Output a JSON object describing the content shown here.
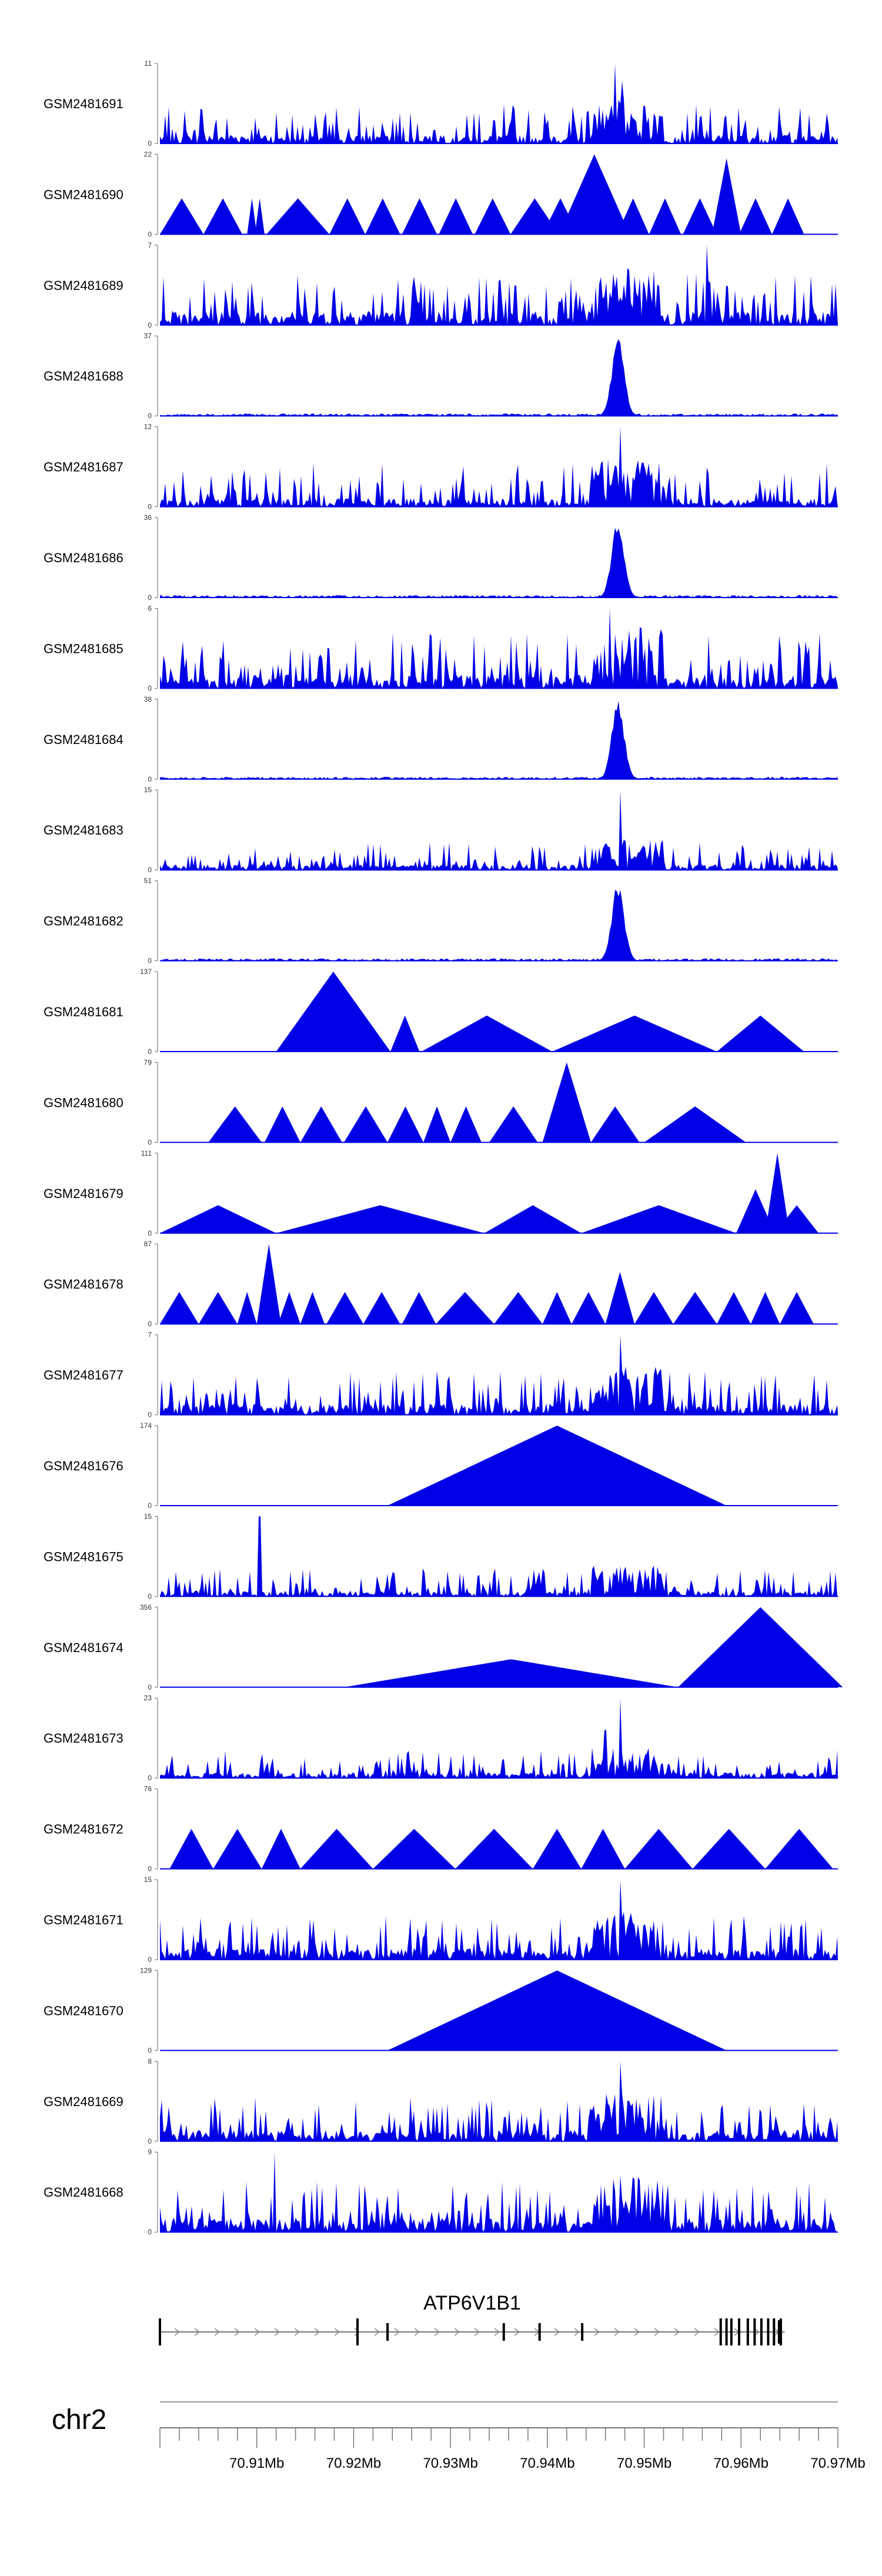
{
  "chart_data": {
    "type": "area",
    "chromosome": "chr2",
    "gene": {
      "name": "ATP6V1B1",
      "start_mb": 70.9,
      "end_mb": 70.9645,
      "strand": "+",
      "exons_mb": [
        70.9,
        70.9204,
        70.9235,
        70.9355,
        70.9392,
        70.9436,
        70.9579,
        70.9585,
        70.959,
        70.9598,
        70.9607,
        70.9614,
        70.9621,
        70.9628,
        70.9634,
        70.9641
      ]
    },
    "xlim": [
      70.9,
      70.97
    ],
    "major_ticks": [
      70.91,
      70.92,
      70.93,
      70.94,
      70.95,
      70.96,
      70.97
    ],
    "tick_labels": [
      "70.91Mb",
      "70.92Mb",
      "70.93Mb",
      "70.94Mb",
      "70.95Mb",
      "70.96Mb",
      "70.97Mb"
    ],
    "tracks": [
      {
        "name": "GSM2481691",
        "ymin": 0,
        "ymax": 11,
        "kind": "noise",
        "base": 0.15,
        "peak": 0.5,
        "spikes": [
          [
            70.947,
            1.0
          ],
          [
            70.9477,
            0.78
          ]
        ]
      },
      {
        "name": "GSM2481690",
        "ymin": 0,
        "ymax": 22,
        "kind": "tri",
        "tris": [
          [
            70.9,
            70.9045,
            0.45
          ],
          [
            70.9045,
            70.9085,
            0.45
          ],
          [
            70.909,
            70.91,
            0.45
          ],
          [
            70.9098,
            70.9108,
            0.45
          ],
          [
            70.911,
            70.9175,
            0.45
          ],
          [
            70.9175,
            70.9212,
            0.45
          ],
          [
            70.9212,
            70.9248,
            0.45
          ],
          [
            70.925,
            70.9286,
            0.45
          ],
          [
            70.9288,
            70.9323,
            0.45
          ],
          [
            70.9325,
            70.9362,
            0.45
          ],
          [
            70.9362,
            70.9412,
            0.45
          ],
          [
            70.9395,
            70.9432,
            0.45
          ],
          [
            70.9412,
            70.9485,
            1.0
          ],
          [
            70.9435,
            70.9472,
            0.45
          ],
          [
            70.9472,
            70.9505,
            0.45
          ],
          [
            70.9505,
            70.9538,
            0.45
          ],
          [
            70.954,
            70.9575,
            0.45
          ],
          [
            70.957,
            70.96,
            0.95
          ],
          [
            70.9598,
            70.9632,
            0.45
          ],
          [
            70.9632,
            70.9665,
            0.45
          ]
        ]
      },
      {
        "name": "GSM2481689",
        "ymin": 0,
        "ymax": 7,
        "kind": "noise",
        "base": 0.25,
        "peak": 0.65,
        "spikes": [
          [
            70.9565,
            1.0
          ]
        ]
      },
      {
        "name": "GSM2481688",
        "ymin": 0,
        "ymax": 37,
        "kind": "peak",
        "base": 0.03,
        "center": 70.9473,
        "width": 0.0009,
        "height": 1.0
      },
      {
        "name": "GSM2481687",
        "ymin": 0,
        "ymax": 12,
        "kind": "noise",
        "base": 0.15,
        "peak": 0.55,
        "spikes": [
          [
            70.9475,
            1.0
          ]
        ]
      },
      {
        "name": "GSM2481686",
        "ymin": 0,
        "ymax": 36,
        "kind": "peak",
        "base": 0.03,
        "center": 70.9473,
        "width": 0.0009,
        "height": 1.0
      },
      {
        "name": "GSM2481685",
        "ymin": 0,
        "ymax": 6,
        "kind": "noise",
        "base": 0.25,
        "peak": 0.7,
        "spikes": [
          [
            70.9465,
            1.0
          ]
        ]
      },
      {
        "name": "GSM2481684",
        "ymin": 0,
        "ymax": 38,
        "kind": "peak",
        "base": 0.03,
        "center": 70.9473,
        "width": 0.0009,
        "height": 1.0
      },
      {
        "name": "GSM2481683",
        "ymin": 0,
        "ymax": 15,
        "kind": "noise",
        "base": 0.1,
        "peak": 0.35,
        "spikes": [
          [
            70.9475,
            1.0
          ]
        ]
      },
      {
        "name": "GSM2481682",
        "ymin": 0,
        "ymax": 51,
        "kind": "peak",
        "base": 0.03,
        "center": 70.9473,
        "width": 0.0009,
        "height": 1.0
      },
      {
        "name": "GSM2481681",
        "ymin": 0,
        "ymax": 137,
        "kind": "tri",
        "tris": [
          [
            70.912,
            70.9238,
            1.0
          ],
          [
            70.9238,
            70.9268,
            0.45
          ],
          [
            70.927,
            70.9405,
            0.45
          ],
          [
            70.9405,
            70.9575,
            0.45
          ],
          [
            70.9575,
            70.9665,
            0.45
          ]
        ]
      },
      {
        "name": "GSM2481680",
        "ymin": 0,
        "ymax": 79,
        "kind": "tri",
        "tris": [
          [
            70.905,
            70.9105,
            0.45
          ],
          [
            70.9108,
            70.9145,
            0.45
          ],
          [
            70.9145,
            70.9188,
            0.45
          ],
          [
            70.919,
            70.9235,
            0.45
          ],
          [
            70.9235,
            70.9272,
            0.45
          ],
          [
            70.9272,
            70.93,
            0.45
          ],
          [
            70.93,
            70.9332,
            0.45
          ],
          [
            70.934,
            70.939,
            0.45
          ],
          [
            70.9395,
            70.9445,
            1.0
          ],
          [
            70.9445,
            70.9495,
            0.45
          ],
          [
            70.95,
            70.9605,
            0.45
          ]
        ]
      },
      {
        "name": "GSM2481679",
        "ymin": 0,
        "ymax": 111,
        "kind": "tri",
        "tris": [
          [
            70.9,
            70.912,
            0.35
          ],
          [
            70.912,
            70.9335,
            0.35
          ],
          [
            70.9335,
            70.9435,
            0.35
          ],
          [
            70.9435,
            70.9595,
            0.35
          ],
          [
            70.9595,
            70.9635,
            0.55
          ],
          [
            70.9625,
            70.965,
            1.0
          ],
          [
            70.9635,
            70.968,
            0.35
          ]
        ]
      },
      {
        "name": "GSM2481678",
        "ymin": 0,
        "ymax": 87,
        "kind": "tri",
        "tris": [
          [
            70.9,
            70.904,
            0.4
          ],
          [
            70.904,
            70.908,
            0.4
          ],
          [
            70.908,
            70.91,
            0.4
          ],
          [
            70.91,
            70.9125,
            1.0
          ],
          [
            70.9122,
            70.9145,
            0.4
          ],
          [
            70.9145,
            70.917,
            0.4
          ],
          [
            70.9172,
            70.921,
            0.4
          ],
          [
            70.921,
            70.9248,
            0.4
          ],
          [
            70.925,
            70.9285,
            0.4
          ],
          [
            70.9285,
            70.9345,
            0.4
          ],
          [
            70.9345,
            70.9395,
            0.4
          ],
          [
            70.9395,
            70.9425,
            0.4
          ],
          [
            70.9425,
            70.946,
            0.4
          ],
          [
            70.946,
            70.949,
            0.65
          ],
          [
            70.949,
            70.953,
            0.4
          ],
          [
            70.953,
            70.9575,
            0.4
          ],
          [
            70.9575,
            70.961,
            0.4
          ],
          [
            70.961,
            70.964,
            0.4
          ],
          [
            70.964,
            70.9675,
            0.4
          ]
        ]
      },
      {
        "name": "GSM2481677",
        "ymin": 0,
        "ymax": 7,
        "kind": "noise",
        "base": 0.2,
        "peak": 0.55,
        "spikes": [
          [
            70.9475,
            1.0
          ]
        ]
      },
      {
        "name": "GSM2481676",
        "ymin": 0,
        "ymax": 174,
        "kind": "tri",
        "tris": [
          [
            70.9235,
            70.9585,
            1.0
          ]
        ]
      },
      {
        "name": "GSM2481675",
        "ymin": 0,
        "ymax": 15,
        "kind": "noise",
        "base": 0.1,
        "peak": 0.35,
        "spikes": [
          [
            70.9103,
            1.0
          ]
        ]
      },
      {
        "name": "GSM2481674",
        "ymin": 0,
        "ymax": 356,
        "kind": "tri",
        "tris": [
          [
            70.919,
            70.9535,
            0.35
          ],
          [
            70.9535,
            70.9705,
            1.0
          ]
        ]
      },
      {
        "name": "GSM2481673",
        "ymin": 0,
        "ymax": 23,
        "kind": "noise",
        "base": 0.1,
        "peak": 0.35,
        "spikes": [
          [
            70.9475,
            1.0
          ],
          [
            70.946,
            0.6
          ]
        ]
      },
      {
        "name": "GSM2481672",
        "ymin": 0,
        "ymax": 76,
        "kind": "tri",
        "tris": [
          [
            70.901,
            70.9055,
            0.5
          ],
          [
            70.9055,
            70.9105,
            0.5
          ],
          [
            70.9105,
            70.9145,
            0.5
          ],
          [
            70.9145,
            70.922,
            0.5
          ],
          [
            70.922,
            70.9305,
            0.5
          ],
          [
            70.9305,
            70.9385,
            0.5
          ],
          [
            70.9385,
            70.9435,
            0.5
          ],
          [
            70.9435,
            70.948,
            0.5
          ],
          [
            70.948,
            70.955,
            0.5
          ],
          [
            70.955,
            70.9625,
            0.5
          ],
          [
            70.9625,
            70.9695,
            0.5
          ]
        ]
      },
      {
        "name": "GSM2481671",
        "ymin": 0,
        "ymax": 15,
        "kind": "noise",
        "base": 0.2,
        "peak": 0.55,
        "spikes": [
          [
            70.9475,
            1.0
          ]
        ]
      },
      {
        "name": "GSM2481670",
        "ymin": 0,
        "ymax": 129,
        "kind": "tri",
        "tris": [
          [
            70.9235,
            70.9585,
            1.0
          ]
        ]
      },
      {
        "name": "GSM2481669",
        "ymin": 0,
        "ymax": 8,
        "kind": "noise",
        "base": 0.2,
        "peak": 0.55,
        "spikes": [
          [
            70.9475,
            1.0
          ]
        ]
      },
      {
        "name": "GSM2481668",
        "ymin": 0,
        "ymax": 9,
        "kind": "noise",
        "base": 0.25,
        "peak": 0.65,
        "spikes": [
          [
            70.9118,
            1.0
          ]
        ]
      }
    ]
  }
}
